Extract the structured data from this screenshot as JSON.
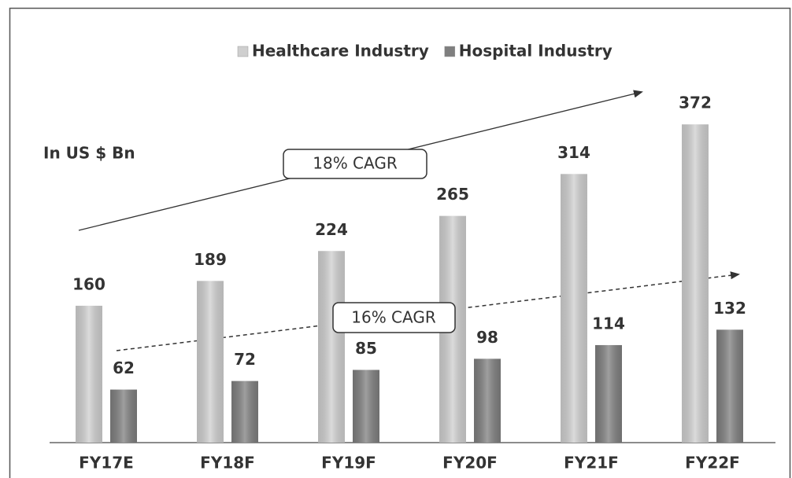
{
  "chart_data": {
    "type": "bar",
    "categories": [
      "FY17E",
      "FY18F",
      "FY19F",
      "FY20F",
      "FY21F",
      "FY22F"
    ],
    "series": [
      {
        "name": "Healthcare Industry",
        "color": "#cfcfcf",
        "values": [
          160,
          189,
          224,
          265,
          314,
          372
        ]
      },
      {
        "name": "Hospital Industry",
        "color": "#7f7f7f",
        "values": [
          62,
          72,
          85,
          98,
          114,
          132
        ]
      }
    ],
    "ylim": [
      0,
      420
    ],
    "annotations": {
      "unit": "In US $ Bn",
      "cagr_healthcare": "18% CAGR",
      "cagr_hospital": "16% CAGR"
    }
  }
}
